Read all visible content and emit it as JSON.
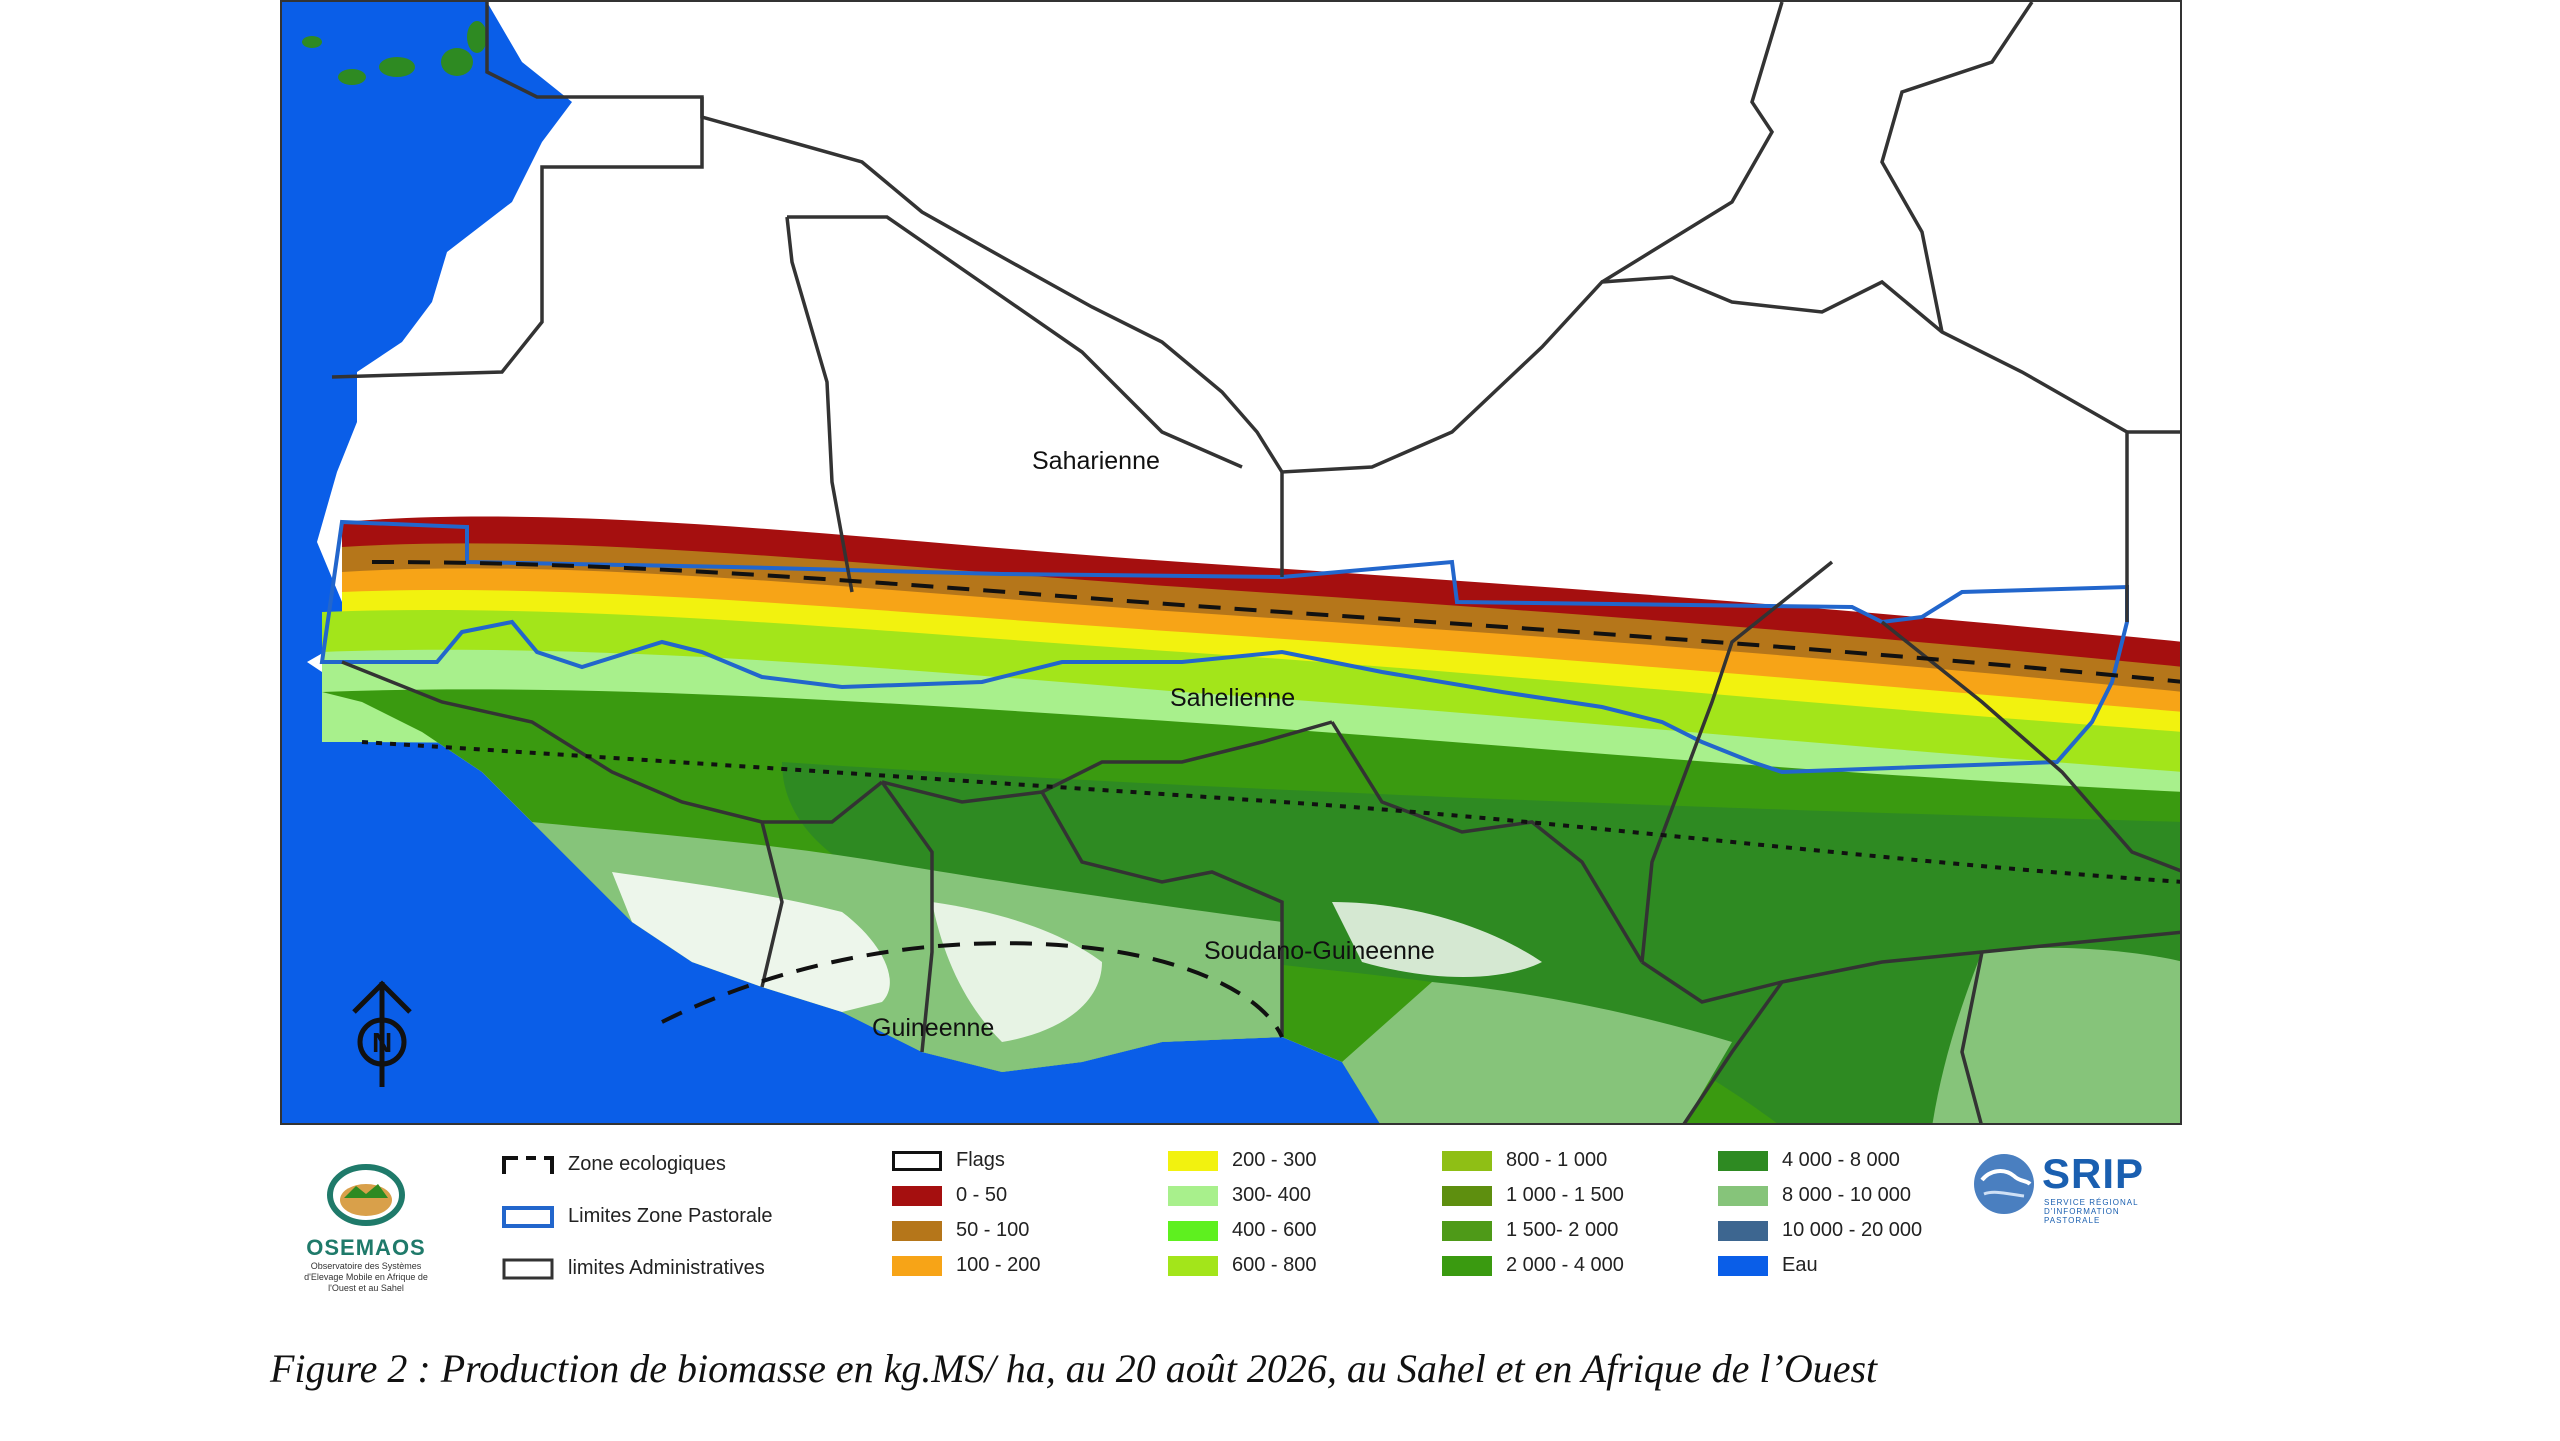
{
  "map": {
    "zone_labels": [
      {
        "id": "saharienne",
        "text": "Saharienne"
      },
      {
        "id": "sahelienne",
        "text": "Sahelienne"
      },
      {
        "id": "soudano",
        "text": "Soudano-Guineenne"
      },
      {
        "id": "guineenne",
        "text": "Guineenne"
      }
    ],
    "north_arrow_letter": "N"
  },
  "legend": {
    "symbols": [
      {
        "id": "zone-eco",
        "label": "Zone ecologiques"
      },
      {
        "id": "pastorale",
        "label": "Limites Zone Pastorale"
      },
      {
        "id": "admin",
        "label": "limites Administratives"
      }
    ],
    "classes": [
      {
        "label": "Flags",
        "color": "#ffffff",
        "outlined": true
      },
      {
        "label": "0 - 50",
        "color": "#a50f0f"
      },
      {
        "label": "50 - 100",
        "color": "#b5761a"
      },
      {
        "label": "100 - 200",
        "color": "#f7a417"
      },
      {
        "label": "200 - 300",
        "color": "#f2f20f"
      },
      {
        "label": "300- 400",
        "color": "#a8f08c"
      },
      {
        "label": "400 - 600",
        "color": "#5ef01f"
      },
      {
        "label": "600 - 800",
        "color": "#a3e51a"
      },
      {
        "label": "800 - 1 000",
        "color": "#8fbf15"
      },
      {
        "label": "1 000 - 1 500",
        "color": "#5e8f0f"
      },
      {
        "label": "1 500- 2 000",
        "color": "#4e9a18"
      },
      {
        "label": "2 000 - 4 000",
        "color": "#3a9a10"
      },
      {
        "label": "4 000 - 8 000",
        "color": "#2e8a22"
      },
      {
        "label": "8 000 - 10 000",
        "color": "#86c47a"
      },
      {
        "label": "10 000 - 20 000",
        "color": "#3d6690"
      },
      {
        "label": "Eau",
        "color": "#0a5ee8"
      }
    ]
  },
  "logos": {
    "osemaos_name": "OSEMAOS",
    "osemaos_sub": "Observatoire des Systèmes d'Elevage Mobile en Afrique de l'Ouest et au Sahel",
    "srip_name": "SRIP",
    "srip_sub": "SERVICE RÉGIONAL D'INFORMATION PASTORALE"
  },
  "caption": "Figure 2 : Production de biomasse en kg.MS/ ha, au 20 août 2026, au Sahel et en Afrique de l’Ouest",
  "colors": {
    "ocean": "#0a5ee8",
    "land_white": "#ffffff",
    "pastoral_line": "#2266cc",
    "border": "#333333"
  }
}
